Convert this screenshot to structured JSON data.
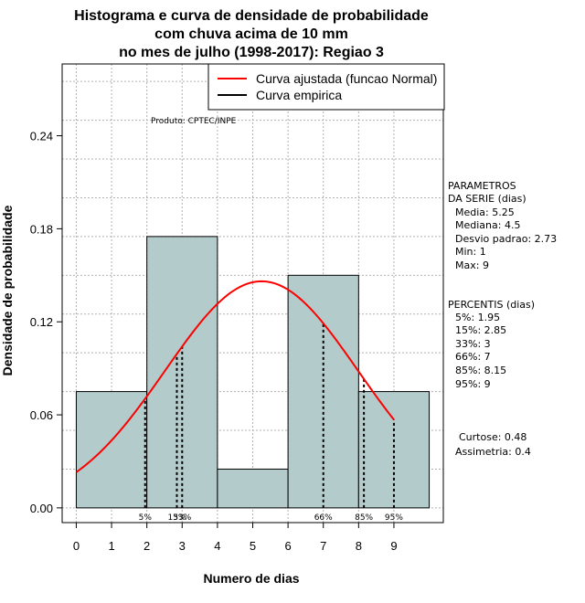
{
  "chart_data": {
    "type": "histogram",
    "title_lines": [
      "Histograma e curva de densidade de probabilidade",
      "com chuva acima de 10 mm",
      "no mes de julho (1998-2017): Regiao 3"
    ],
    "xlabel": "Numero de dias",
    "ylabel": "Densidade de probabilidade",
    "xlim": [
      -0.4,
      10.4
    ],
    "ylim": [
      -0.0095,
      0.2863
    ],
    "x_ticks": [
      "0",
      "1",
      "2",
      "3",
      "4",
      "5",
      "6",
      "7",
      "8",
      "9"
    ],
    "y_ticks": [
      "0.00",
      "0.06",
      "0.12",
      "0.18",
      "0.24"
    ],
    "bins": [
      {
        "x0": 0,
        "x1": 2,
        "density": 0.075
      },
      {
        "x0": 2,
        "x1": 4,
        "density": 0.175
      },
      {
        "x0": 4,
        "x1": 6,
        "density": 0.025
      },
      {
        "x0": 6,
        "x1": 8,
        "density": 0.15
      },
      {
        "x0": 8,
        "x1": 10,
        "density": 0.075
      }
    ],
    "bar_color": "#b4cbcb",
    "curve_color": "#ff0000",
    "normal_fit": {
      "mean": 5.25,
      "sd": 2.73,
      "x_range": [
        0,
        9
      ]
    },
    "percentile_markers": [
      {
        "label": "5%",
        "x": 1.95
      },
      {
        "label": "15%",
        "x": 2.85
      },
      {
        "label": "33%",
        "x": 3
      },
      {
        "label": "66%",
        "x": 7
      },
      {
        "label": "85%",
        "x": 8.15
      },
      {
        "label": "95%",
        "x": 9
      }
    ],
    "legend": {
      "position": "top-right",
      "entries": [
        {
          "label": "Curva ajustada (funcao Normal)",
          "color": "#ff0000"
        },
        {
          "label": "Curva empirica",
          "color": "#000000"
        }
      ]
    },
    "grid": true,
    "product_label": "Produto: CPTEC/INPE",
    "parameters": {
      "heading": [
        "PARAMETROS",
        "DA SERIE (dias)"
      ],
      "items": [
        "Media: 5.25",
        "Mediana: 4.5",
        "Desvio padrao: 2.73",
        "Min: 1",
        "Max: 9"
      ]
    },
    "percentis": {
      "heading": "PERCENTIS (dias)",
      "items": [
        "5%: 1.95",
        "15%: 2.85",
        "33%: 3",
        "66%: 7",
        "85%: 8.15",
        "95%: 9"
      ]
    },
    "shape": {
      "items": [
        "Curtose: 0.48",
        "Assimetria: 0.4"
      ]
    }
  }
}
